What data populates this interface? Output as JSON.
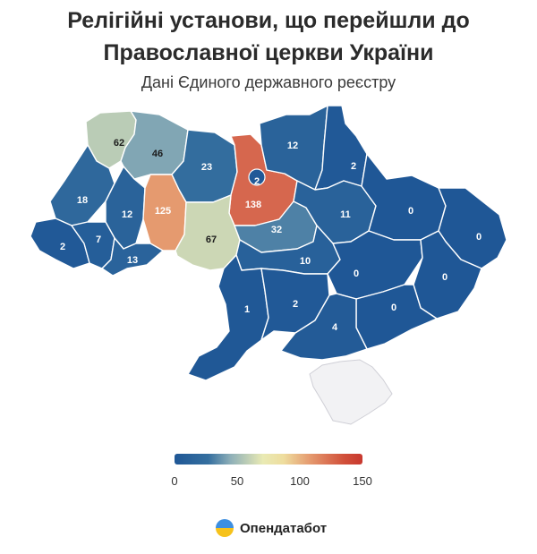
{
  "header": {
    "title_line1": "Релігійні установи, що перейшли до",
    "title_line2": "Православної церкви України",
    "subtitle": "Дані Єдиного державного реєстру"
  },
  "colors": {
    "scale": [
      "#1f5796",
      "#356f9f",
      "#8fb0b8",
      "#e9eab4",
      "#eedd9e",
      "#e59a6f",
      "#c8382f"
    ],
    "no_data": "#f2f2f4"
  },
  "legend": {
    "min": 0,
    "max": 150,
    "ticks": [
      "0",
      "50",
      "100",
      "150"
    ]
  },
  "regions": [
    {
      "id": "volyn",
      "value": 62
    },
    {
      "id": "rivne",
      "value": 46
    },
    {
      "id": "zhytomyr",
      "value": 23
    },
    {
      "id": "kyiv-oblast",
      "value": 138
    },
    {
      "id": "kyiv-city",
      "value": 2
    },
    {
      "id": "chernihiv",
      "value": 12
    },
    {
      "id": "sumy",
      "value": 2
    },
    {
      "id": "lviv",
      "value": 18
    },
    {
      "id": "ternopil",
      "value": 12
    },
    {
      "id": "khmelnytskyi",
      "value": 125
    },
    {
      "id": "zakarpattia",
      "value": 2
    },
    {
      "id": "ivano-frankivsk",
      "value": 7
    },
    {
      "id": "chernivtsi",
      "value": 13
    },
    {
      "id": "vinnytsia",
      "value": 67
    },
    {
      "id": "cherkasy",
      "value": 32
    },
    {
      "id": "poltava",
      "value": 11
    },
    {
      "id": "kharkiv",
      "value": 0
    },
    {
      "id": "luhansk",
      "value": 0
    },
    {
      "id": "kirovohrad",
      "value": 10
    },
    {
      "id": "dnipro",
      "value": 0
    },
    {
      "id": "donetsk",
      "value": 0
    },
    {
      "id": "odesa",
      "value": 1
    },
    {
      "id": "mykolaiv",
      "value": 2
    },
    {
      "id": "zaporizhzhia",
      "value": 0
    },
    {
      "id": "kherson",
      "value": 4
    }
  ],
  "footer": {
    "brand": "Опендатабот"
  }
}
